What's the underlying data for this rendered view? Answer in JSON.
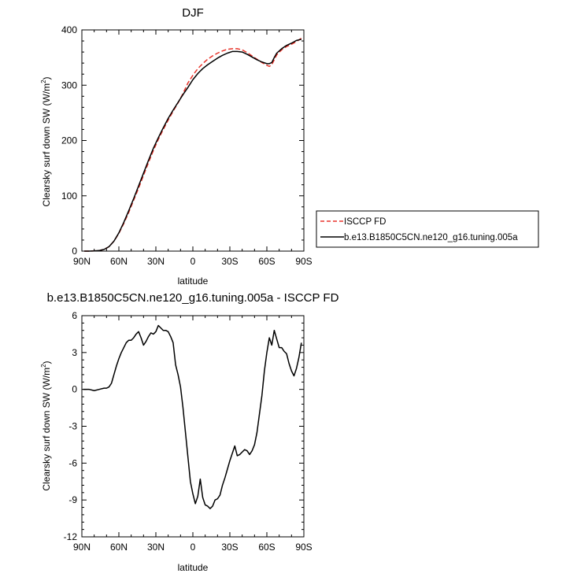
{
  "chart_data": [
    {
      "type": "line",
      "title": "DJF",
      "xlabel": "latitude",
      "ylabel_main": "Clearsky surf down SW (W/m",
      "ylabel_sup": "2",
      "ylabel_close": ")",
      "xlim": [
        90,
        -90
      ],
      "ylim": [
        0,
        400
      ],
      "xticks": [
        90,
        60,
        30,
        0,
        -30,
        -60,
        -90
      ],
      "xtick_labels": [
        "90N",
        "60N",
        "30N",
        "0",
        "30S",
        "60S",
        "90S"
      ],
      "yticks": [
        0,
        100,
        200,
        300,
        400
      ],
      "ytick_labels": [
        "0",
        "100",
        "200",
        "300",
        "400"
      ],
      "legend_position": "right",
      "series": [
        {
          "name": "ISCCP FD",
          "color": "#e8342b",
          "dash": "dashed",
          "x": [
            88,
            84,
            80,
            76,
            72,
            68,
            64,
            60,
            56,
            52,
            48,
            44,
            40,
            36,
            32,
            28,
            24,
            20,
            16,
            12,
            8,
            4,
            0,
            -4,
            -8,
            -12,
            -16,
            -20,
            -24,
            -28,
            -32,
            -36,
            -40,
            -44,
            -48,
            -52,
            -56,
            -60,
            -62,
            -64,
            -66,
            -68,
            -72,
            -76,
            -80,
            -84,
            -88
          ],
          "y": [
            0,
            0,
            0.3,
            1,
            3,
            8,
            18,
            32,
            50,
            70,
            92,
            114,
            137,
            160,
            182,
            202,
            220,
            237,
            253,
            268,
            285,
            304,
            318,
            330,
            339,
            347,
            353,
            358,
            362,
            365,
            366,
            366,
            364,
            359,
            353,
            347,
            341,
            336,
            334,
            337,
            346,
            355,
            364,
            370,
            374,
            379,
            385
          ]
        },
        {
          "name": "b.e13.B1850C5CN.ne120_g16.tuning.005a",
          "color": "#000000",
          "dash": "solid",
          "x": [
            88,
            84,
            80,
            76,
            72,
            68,
            64,
            60,
            56,
            52,
            48,
            44,
            40,
            36,
            32,
            28,
            24,
            20,
            16,
            12,
            8,
            4,
            0,
            -4,
            -8,
            -12,
            -16,
            -20,
            -24,
            -28,
            -32,
            -36,
            -40,
            -44,
            -48,
            -52,
            -56,
            -60,
            -62,
            -64,
            -66,
            -68,
            -72,
            -76,
            -80,
            -84,
            -88
          ],
          "y": [
            0,
            0,
            0.3,
            1,
            3,
            8,
            18,
            33,
            52,
            73,
            95,
            118,
            141,
            164,
            186,
            205,
            223,
            240,
            255,
            269,
            283,
            296,
            310,
            321,
            330,
            337,
            343,
            349,
            354,
            358,
            361,
            361,
            360,
            356,
            351,
            346,
            342,
            339,
            339,
            341,
            350,
            358,
            366,
            372,
            376,
            381,
            383
          ]
        }
      ]
    },
    {
      "type": "line",
      "title": "b.e13.B1850C5CN.ne120_g16.tuning.005a - ISCCP FD",
      "xlabel": "latitude",
      "ylabel_main": "Clearsky surf down SW (W/m",
      "ylabel_sup": "2",
      "ylabel_close": ")",
      "xlim": [
        90,
        -90
      ],
      "ylim": [
        -12,
        6
      ],
      "xticks": [
        90,
        60,
        30,
        0,
        -30,
        -60,
        -90
      ],
      "xtick_labels": [
        "90N",
        "60N",
        "30N",
        "0",
        "30S",
        "60S",
        "90S"
      ],
      "yticks": [
        -12,
        -9,
        -6,
        -3,
        0,
        3,
        6
      ],
      "ytick_labels": [
        "-12",
        "-9",
        "-6",
        "-3",
        "0",
        "3",
        "6"
      ],
      "series": [
        {
          "color": "#000000",
          "dash": "solid",
          "x": [
            89,
            84,
            80,
            76,
            72,
            70,
            68,
            66,
            64,
            62,
            60,
            58,
            56,
            54,
            52,
            50,
            48,
            46,
            44,
            42,
            40,
            38,
            36,
            34,
            32,
            30,
            28,
            26,
            24,
            22,
            20,
            18,
            16,
            14,
            12,
            10,
            8,
            6,
            4,
            2,
            0,
            -2,
            -4,
            -6,
            -8,
            -10,
            -12,
            -14,
            -16,
            -18,
            -20,
            -22,
            -24,
            -26,
            -28,
            -30,
            -32,
            -34,
            -36,
            -38,
            -40,
            -42,
            -44,
            -46,
            -48,
            -50,
            -52,
            -54,
            -56,
            -58,
            -60,
            -62,
            -64,
            -66,
            -68,
            -70,
            -72,
            -74,
            -76,
            -78,
            -80,
            -82,
            -84,
            -86,
            -88
          ],
          "y": [
            0,
            0,
            -0.1,
            0,
            0.1,
            0.1,
            0.2,
            0.5,
            1.2,
            1.9,
            2.5,
            3.0,
            3.4,
            3.8,
            4.0,
            4.0,
            4.2,
            4.5,
            4.7,
            4.2,
            3.6,
            3.9,
            4.3,
            4.6,
            4.5,
            4.7,
            5.2,
            5.0,
            4.8,
            4.8,
            4.7,
            4.3,
            3.8,
            2.0,
            1.2,
            0.2,
            -1.5,
            -3.5,
            -5.5,
            -7.5,
            -8.5,
            -9.3,
            -8.7,
            -7.3,
            -8.8,
            -9.4,
            -9.5,
            -9.7,
            -9.5,
            -9.0,
            -8.9,
            -8.6,
            -7.8,
            -7.2,
            -6.5,
            -5.8,
            -5.2,
            -4.6,
            -5.4,
            -5.3,
            -5.1,
            -4.9,
            -5.0,
            -5.3,
            -5.0,
            -4.5,
            -3.5,
            -2.0,
            -0.5,
            1.5,
            3.0,
            4.2,
            3.6,
            4.8,
            4.1,
            3.4,
            3.4,
            3.1,
            2.9,
            2.1,
            1.5,
            1.1,
            1.7,
            2.6,
            3.8
          ]
        }
      ]
    }
  ]
}
